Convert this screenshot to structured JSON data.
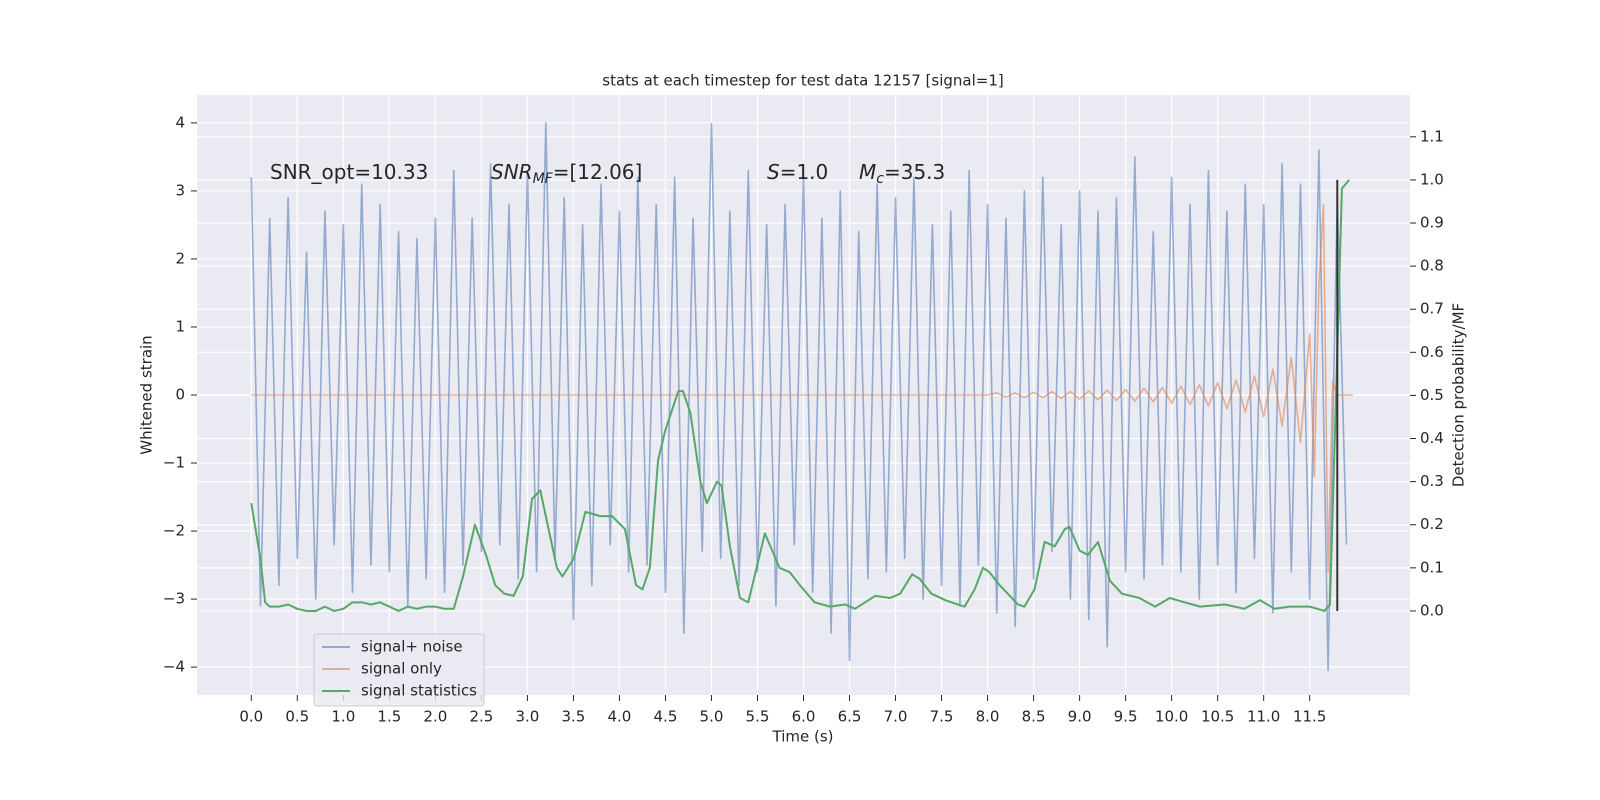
{
  "chart_data": {
    "type": "line",
    "title": "stats at each timestep for test data 12157 [signal=1]",
    "x_label": "Time (s)",
    "y_label": "Whitened strain",
    "y2_label": "Detection probability/MF",
    "xlim": [
      -0.59,
      12.59
    ],
    "ylim": [
      -4.41,
      4.41
    ],
    "y2lim": [
      -0.195,
      1.197
    ],
    "xticks": [
      {
        "value": 0,
        "label": "0.0"
      },
      0.5,
      {
        "value": 1,
        "label": "1.0"
      },
      1.5,
      {
        "value": 2,
        "label": "2.0"
      },
      2.5,
      {
        "value": 3,
        "label": "3.0"
      },
      3.5,
      {
        "value": 4,
        "label": "4.0"
      },
      4.5,
      {
        "value": 5,
        "label": "5.0"
      },
      5.5,
      {
        "value": 6,
        "label": "6.0"
      },
      6.5,
      {
        "value": 7,
        "label": "7.0"
      },
      7.5,
      {
        "value": 8,
        "label": "8.0"
      },
      8.5,
      {
        "value": 9,
        "label": "9.0"
      },
      9.5,
      {
        "value": 10,
        "label": "10.0"
      },
      10.5,
      {
        "value": 11,
        "label": "11.0"
      },
      11.5
    ],
    "yticks": [
      {
        "value": -4,
        "label": "−4"
      },
      {
        "value": -3,
        "label": "−3"
      },
      {
        "value": -2,
        "label": "−2"
      },
      {
        "value": -1,
        "label": "−1"
      },
      0,
      1,
      2,
      3,
      4
    ],
    "y2ticks": [
      {
        "value": 0,
        "label": "0.0"
      },
      0.1,
      0.2,
      0.3,
      0.4,
      0.5,
      0.6,
      0.7,
      0.8,
      0.9,
      {
        "value": 1,
        "label": "1.0"
      },
      1.1
    ],
    "grid": true,
    "legend": "lower left",
    "annotations": [
      [
        {
          "text": "SNR_opt=10.33"
        }
      ],
      [
        {
          "text": "SNR",
          "italic": true
        },
        {
          "text": "MF",
          "italic": true,
          "sub": true
        },
        {
          "text": "=[12.06]"
        }
      ],
      [
        {
          "text": "S",
          "italic": true
        },
        {
          "text": "=1.0"
        }
      ],
      [
        {
          "text": "M",
          "italic": true
        },
        {
          "text": "c",
          "italic": true,
          "sub": true
        },
        {
          "text": "=35.3"
        }
      ]
    ],
    "series": [
      {
        "name": "signal+ noise",
        "color": "#4c72b0",
        "x": [
          0.0,
          0.1,
          0.2,
          0.3,
          0.4,
          0.5,
          0.6,
          0.7,
          0.8,
          0.9,
          1.0,
          1.1,
          1.2,
          1.3,
          1.4,
          1.5,
          1.6,
          1.7,
          1.8,
          1.9,
          2.0,
          2.1,
          2.2,
          2.3,
          2.4,
          2.5,
          2.6,
          2.7,
          2.8,
          2.9,
          3.0,
          3.1,
          3.2,
          3.3,
          3.4,
          3.5,
          3.6,
          3.7,
          3.8,
          3.9,
          4.0,
          4.1,
          4.2,
          4.3,
          4.4,
          4.5,
          4.6,
          4.7,
          4.8,
          4.9,
          5.0,
          5.1,
          5.2,
          5.3,
          5.4,
          5.5,
          5.6,
          5.7,
          5.8,
          5.9,
          6.0,
          6.1,
          6.2,
          6.3,
          6.4,
          6.5,
          6.6,
          6.7,
          6.8,
          6.9,
          7.0,
          7.1,
          7.2,
          7.3,
          7.4,
          7.5,
          7.6,
          7.7,
          7.8,
          7.9,
          8.0,
          8.1,
          8.2,
          8.3,
          8.4,
          8.5,
          8.6,
          8.7,
          8.8,
          8.9,
          9.0,
          9.1,
          9.2,
          9.3,
          9.4,
          9.5,
          9.6,
          9.7,
          9.8,
          9.9,
          10.0,
          10.1,
          10.2,
          10.3,
          10.4,
          10.5,
          10.6,
          10.7,
          10.8,
          10.9,
          11.0,
          11.1,
          11.2,
          11.3,
          11.4,
          11.5,
          11.6,
          11.7,
          11.8,
          11.9
        ],
        "values": [
          3.2,
          -3.1,
          2.6,
          -2.8,
          2.9,
          -2.4,
          2.1,
          -3.0,
          2.7,
          -2.2,
          2.5,
          -2.9,
          3.1,
          -2.5,
          2.8,
          -2.6,
          2.4,
          -3.1,
          2.3,
          -2.7,
          2.6,
          -2.9,
          3.3,
          -2.5,
          2.6,
          -2.3,
          3.4,
          -2.2,
          2.8,
          -2.7,
          3.3,
          -2.6,
          4.0,
          -2.4,
          2.9,
          -3.3,
          2.5,
          -2.8,
          3.1,
          -2.2,
          2.7,
          -2.6,
          3.2,
          -2.5,
          2.8,
          -2.9,
          3.2,
          -3.5,
          2.6,
          -2.3,
          3.99,
          -2.4,
          2.7,
          -2.8,
          3.3,
          -2.6,
          2.5,
          -3.1,
          2.8,
          -2.2,
          3.2,
          -2.9,
          2.6,
          -3.5,
          3.0,
          -3.9,
          2.4,
          -2.7,
          3.1,
          -2.6,
          2.9,
          -2.4,
          3.2,
          -3.0,
          2.5,
          -2.8,
          2.7,
          -3.1,
          3.3,
          -2.5,
          2.8,
          -3.2,
          2.6,
          -3.4,
          3.0,
          -2.7,
          3.2,
          -2.3,
          2.5,
          -3.0,
          3.0,
          -3.3,
          2.7,
          -3.7,
          2.9,
          -2.6,
          3.5,
          -2.7,
          2.4,
          -2.5,
          3.2,
          -2.6,
          2.8,
          -3.0,
          3.3,
          -2.5,
          2.7,
          -2.9,
          3.1,
          -2.4,
          2.8,
          -3.2,
          3.4,
          -2.6,
          3.1,
          -3.0,
          3.6,
          -4.05,
          2.9,
          -2.2
        ]
      },
      {
        "name": "signal only",
        "color": "#dd8452",
        "x": [
          0.0,
          8.0,
          8.1,
          8.2,
          8.3,
          8.4,
          8.5,
          8.6,
          8.7,
          8.8,
          8.9,
          9.0,
          9.1,
          9.2,
          9.3,
          9.4,
          9.5,
          9.6,
          9.7,
          9.8,
          9.9,
          10.0,
          10.1,
          10.2,
          10.3,
          10.4,
          10.5,
          10.6,
          10.7,
          10.8,
          10.9,
          11.0,
          11.1,
          11.2,
          11.3,
          11.4,
          11.5,
          11.55,
          11.6,
          11.65,
          11.7,
          11.75,
          11.8,
          11.97
        ],
        "values": [
          0.0,
          0.0,
          0.03,
          -0.03,
          0.03,
          -0.04,
          0.04,
          -0.04,
          0.05,
          -0.05,
          0.05,
          -0.06,
          0.06,
          -0.07,
          0.07,
          -0.08,
          0.08,
          -0.09,
          0.1,
          -0.1,
          0.11,
          -0.12,
          0.13,
          -0.14,
          0.15,
          -0.16,
          0.18,
          -0.2,
          0.22,
          -0.25,
          0.28,
          -0.32,
          0.38,
          -0.45,
          0.55,
          -0.7,
          0.9,
          -1.2,
          1.6,
          2.8,
          -2.6,
          0.2,
          0.0,
          0.0
        ]
      },
      {
        "name": "signal statistics",
        "color": "#55a868",
        "axis": "y2",
        "x": [
          0.0,
          0.1,
          0.15,
          0.2,
          0.3,
          0.4,
          0.5,
          0.6,
          0.7,
          0.8,
          0.9,
          1.0,
          1.1,
          1.2,
          1.3,
          1.4,
          1.5,
          1.6,
          1.7,
          1.8,
          1.9,
          2.0,
          2.1,
          2.2,
          2.3,
          2.43,
          2.55,
          2.65,
          2.75,
          2.85,
          2.95,
          3.05,
          3.14,
          3.22,
          3.32,
          3.38,
          3.5,
          3.63,
          3.79,
          3.92,
          4.06,
          4.18,
          4.25,
          4.33,
          4.42,
          4.5,
          4.64,
          4.69,
          4.77,
          4.88,
          4.95,
          5.06,
          5.11,
          5.2,
          5.31,
          5.4,
          5.49,
          5.58,
          5.66,
          5.74,
          5.85,
          5.96,
          6.12,
          6.29,
          6.45,
          6.56,
          6.67,
          6.78,
          6.94,
          7.05,
          7.18,
          7.26,
          7.39,
          7.54,
          7.75,
          7.86,
          7.95,
          8.02,
          8.13,
          8.22,
          8.33,
          8.4,
          8.51,
          8.62,
          8.73,
          8.84,
          8.89,
          9.0,
          9.09,
          9.2,
          9.33,
          9.46,
          9.65,
          9.82,
          9.98,
          10.14,
          10.31,
          10.58,
          10.79,
          10.96,
          11.12,
          11.28,
          11.5,
          11.66,
          11.72,
          11.8,
          11.85,
          11.93
        ],
        "values": [
          0.25,
          0.12,
          0.02,
          0.01,
          0.01,
          0.015,
          0.005,
          0.0,
          0.0,
          0.01,
          0.0,
          0.005,
          0.02,
          0.02,
          0.015,
          0.02,
          0.01,
          0.0,
          0.01,
          0.005,
          0.01,
          0.01,
          0.005,
          0.005,
          0.08,
          0.2,
          0.13,
          0.06,
          0.04,
          0.035,
          0.08,
          0.26,
          0.28,
          0.2,
          0.1,
          0.08,
          0.12,
          0.23,
          0.22,
          0.22,
          0.19,
          0.06,
          0.05,
          0.1,
          0.35,
          0.42,
          0.51,
          0.51,
          0.46,
          0.3,
          0.25,
          0.3,
          0.29,
          0.15,
          0.03,
          0.02,
          0.1,
          0.18,
          0.14,
          0.1,
          0.09,
          0.06,
          0.02,
          0.01,
          0.015,
          0.005,
          0.02,
          0.035,
          0.03,
          0.04,
          0.085,
          0.075,
          0.04,
          0.025,
          0.01,
          0.05,
          0.1,
          0.09,
          0.06,
          0.04,
          0.015,
          0.01,
          0.05,
          0.16,
          0.15,
          0.19,
          0.195,
          0.14,
          0.13,
          0.16,
          0.07,
          0.04,
          0.03,
          0.01,
          0.03,
          0.02,
          0.01,
          0.015,
          0.005,
          0.025,
          0.005,
          0.01,
          0.01,
          0.0,
          0.015,
          0.6,
          0.98,
          1.0
        ]
      }
    ],
    "marker_line": {
      "x": [
        11.8,
        11.8
      ],
      "values": [
        0,
        1.0
      ],
      "axis": "y2",
      "color": "#333333"
    }
  }
}
